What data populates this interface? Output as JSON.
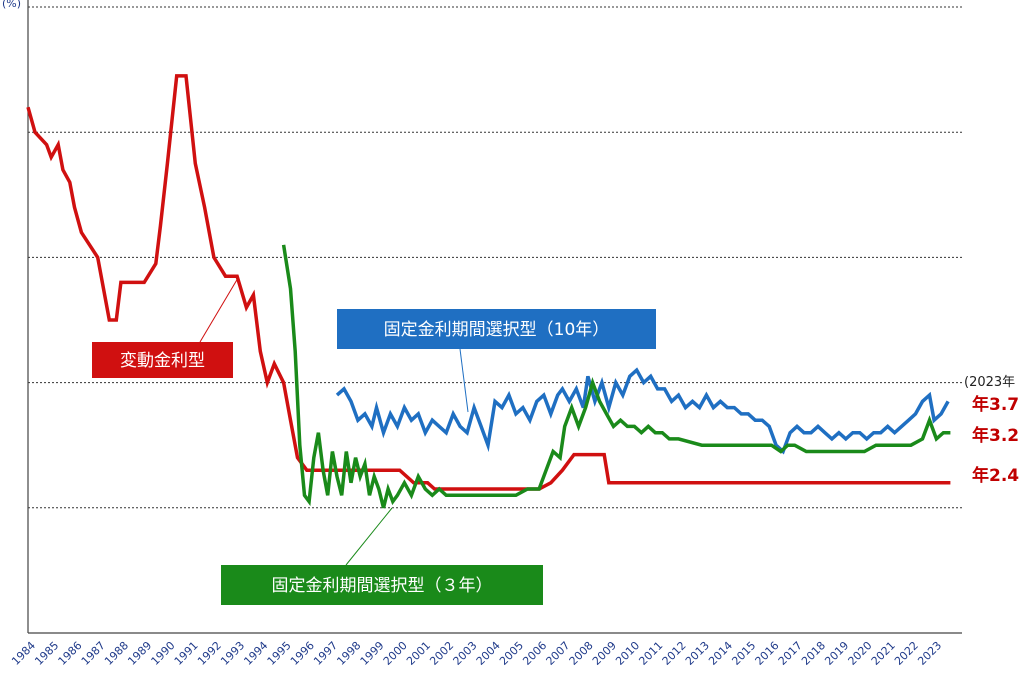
{
  "chart_data": {
    "type": "line",
    "y_unit_label": "(%)",
    "ylim": [
      0,
      10
    ],
    "y_gridlines": [
      2,
      4,
      6,
      8,
      10
    ],
    "x_range": [
      1984,
      2024.2
    ],
    "x_tick_labels": [
      "1984",
      "1985",
      "1986",
      "1987",
      "1988",
      "1989",
      "1990",
      "1991",
      "1992",
      "1993",
      "1994",
      "1995",
      "1996",
      "1997",
      "1998",
      "1999",
      "2000",
      "2001",
      "2002",
      "2003",
      "2004",
      "2005",
      "2006",
      "2007",
      "2008",
      "2009",
      "2010",
      "2011",
      "2012",
      "2013",
      "2014",
      "2015",
      "2016",
      "2017",
      "2018",
      "2019",
      "2020",
      "2021",
      "2022",
      "2023"
    ],
    "note_label": "(2023年",
    "series": [
      {
        "name": "変動金利型",
        "color": "#d01010",
        "end_label": "年2.4",
        "points": [
          [
            1984.0,
            8.4
          ],
          [
            1984.3,
            8.0
          ],
          [
            1984.8,
            7.8
          ],
          [
            1985.0,
            7.6
          ],
          [
            1985.3,
            7.8
          ],
          [
            1985.5,
            7.4
          ],
          [
            1985.8,
            7.2
          ],
          [
            1986.0,
            6.8
          ],
          [
            1986.3,
            6.4
          ],
          [
            1987.0,
            6.0
          ],
          [
            1987.5,
            5.0
          ],
          [
            1987.8,
            5.0
          ],
          [
            1988.0,
            5.6
          ],
          [
            1988.5,
            5.6
          ],
          [
            1989.0,
            5.6
          ],
          [
            1989.5,
            5.9
          ],
          [
            1989.7,
            6.5
          ],
          [
            1990.0,
            7.5
          ],
          [
            1990.4,
            8.9
          ],
          [
            1990.8,
            8.9
          ],
          [
            1991.2,
            7.5
          ],
          [
            1991.6,
            6.8
          ],
          [
            1992.0,
            6.0
          ],
          [
            1992.5,
            5.7
          ],
          [
            1993.0,
            5.7
          ],
          [
            1993.4,
            5.2
          ],
          [
            1993.7,
            5.4
          ],
          [
            1994.0,
            4.5
          ],
          [
            1994.3,
            4.0
          ],
          [
            1994.6,
            4.3
          ],
          [
            1995.0,
            4.0
          ],
          [
            1995.3,
            3.4
          ],
          [
            1995.6,
            2.8
          ],
          [
            1996.0,
            2.6
          ],
          [
            1996.5,
            2.6
          ],
          [
            1997.0,
            2.6
          ],
          [
            1998.0,
            2.6
          ],
          [
            1999.0,
            2.6
          ],
          [
            2000.0,
            2.6
          ],
          [
            2000.6,
            2.4
          ],
          [
            2001.2,
            2.4
          ],
          [
            2001.5,
            2.3
          ],
          [
            2002.0,
            2.3
          ],
          [
            2003.0,
            2.3
          ],
          [
            2004.0,
            2.3
          ],
          [
            2005.0,
            2.3
          ],
          [
            2006.0,
            2.3
          ],
          [
            2006.5,
            2.4
          ],
          [
            2007.0,
            2.6
          ],
          [
            2007.5,
            2.85
          ],
          [
            2008.0,
            2.85
          ],
          [
            2008.8,
            2.85
          ],
          [
            2009.0,
            2.4
          ],
          [
            2010.0,
            2.4
          ],
          [
            2012.0,
            2.4
          ],
          [
            2014.0,
            2.4
          ],
          [
            2016.0,
            2.4
          ],
          [
            2018.0,
            2.4
          ],
          [
            2020.0,
            2.4
          ],
          [
            2022.0,
            2.4
          ],
          [
            2023.7,
            2.4
          ]
        ]
      },
      {
        "name": "固定金利期間選択型（10年）",
        "color": "#1f6fc2",
        "end_label": "年3.7",
        "points": [
          [
            1997.3,
            3.8
          ],
          [
            1997.6,
            3.9
          ],
          [
            1997.9,
            3.7
          ],
          [
            1998.2,
            3.4
          ],
          [
            1998.5,
            3.5
          ],
          [
            1998.8,
            3.3
          ],
          [
            1999.0,
            3.6
          ],
          [
            1999.3,
            3.2
          ],
          [
            1999.6,
            3.5
          ],
          [
            1999.9,
            3.3
          ],
          [
            2000.2,
            3.6
          ],
          [
            2000.5,
            3.4
          ],
          [
            2000.8,
            3.5
          ],
          [
            2001.1,
            3.2
          ],
          [
            2001.4,
            3.4
          ],
          [
            2001.7,
            3.3
          ],
          [
            2002.0,
            3.2
          ],
          [
            2002.3,
            3.5
          ],
          [
            2002.6,
            3.3
          ],
          [
            2002.9,
            3.2
          ],
          [
            2003.2,
            3.6
          ],
          [
            2003.5,
            3.3
          ],
          [
            2003.8,
            3.0
          ],
          [
            2004.1,
            3.7
          ],
          [
            2004.4,
            3.6
          ],
          [
            2004.7,
            3.8
          ],
          [
            2005.0,
            3.5
          ],
          [
            2005.3,
            3.6
          ],
          [
            2005.6,
            3.4
          ],
          [
            2005.9,
            3.7
          ],
          [
            2006.2,
            3.8
          ],
          [
            2006.5,
            3.5
          ],
          [
            2006.8,
            3.8
          ],
          [
            2007.0,
            3.9
          ],
          [
            2007.3,
            3.7
          ],
          [
            2007.6,
            3.9
          ],
          [
            2007.9,
            3.6
          ],
          [
            2008.1,
            4.1
          ],
          [
            2008.4,
            3.7
          ],
          [
            2008.7,
            4.0
          ],
          [
            2009.0,
            3.6
          ],
          [
            2009.3,
            4.0
          ],
          [
            2009.6,
            3.8
          ],
          [
            2009.9,
            4.1
          ],
          [
            2010.2,
            4.2
          ],
          [
            2010.5,
            4.0
          ],
          [
            2010.8,
            4.1
          ],
          [
            2011.1,
            3.9
          ],
          [
            2011.4,
            3.9
          ],
          [
            2011.7,
            3.7
          ],
          [
            2012.0,
            3.8
          ],
          [
            2012.3,
            3.6
          ],
          [
            2012.6,
            3.7
          ],
          [
            2012.9,
            3.6
          ],
          [
            2013.2,
            3.8
          ],
          [
            2013.5,
            3.6
          ],
          [
            2013.8,
            3.7
          ],
          [
            2014.1,
            3.6
          ],
          [
            2014.4,
            3.6
          ],
          [
            2014.7,
            3.5
          ],
          [
            2015.0,
            3.5
          ],
          [
            2015.3,
            3.4
          ],
          [
            2015.6,
            3.4
          ],
          [
            2015.9,
            3.3
          ],
          [
            2016.2,
            3.0
          ],
          [
            2016.5,
            2.9
          ],
          [
            2016.8,
            3.2
          ],
          [
            2017.1,
            3.3
          ],
          [
            2017.4,
            3.2
          ],
          [
            2017.7,
            3.2
          ],
          [
            2018.0,
            3.3
          ],
          [
            2018.3,
            3.2
          ],
          [
            2018.6,
            3.1
          ],
          [
            2018.9,
            3.2
          ],
          [
            2019.2,
            3.1
          ],
          [
            2019.5,
            3.2
          ],
          [
            2019.8,
            3.2
          ],
          [
            2020.1,
            3.1
          ],
          [
            2020.4,
            3.2
          ],
          [
            2020.7,
            3.2
          ],
          [
            2021.0,
            3.3
          ],
          [
            2021.3,
            3.2
          ],
          [
            2021.6,
            3.3
          ],
          [
            2021.9,
            3.4
          ],
          [
            2022.2,
            3.5
          ],
          [
            2022.5,
            3.7
          ],
          [
            2022.8,
            3.8
          ],
          [
            2023.0,
            3.4
          ],
          [
            2023.3,
            3.5
          ],
          [
            2023.6,
            3.7
          ]
        ]
      },
      {
        "name": "固定金利期間選択型（３年）",
        "color": "#1a8a1a",
        "end_label": "年3.2",
        "points": [
          [
            1995.0,
            6.2
          ],
          [
            1995.3,
            5.5
          ],
          [
            1995.5,
            4.5
          ],
          [
            1995.7,
            3.0
          ],
          [
            1995.9,
            2.2
          ],
          [
            1996.1,
            2.1
          ],
          [
            1996.3,
            2.8
          ],
          [
            1996.5,
            3.2
          ],
          [
            1996.7,
            2.6
          ],
          [
            1996.9,
            2.2
          ],
          [
            1997.1,
            2.9
          ],
          [
            1997.3,
            2.5
          ],
          [
            1997.5,
            2.2
          ],
          [
            1997.7,
            2.9
          ],
          [
            1997.9,
            2.4
          ],
          [
            1998.1,
            2.8
          ],
          [
            1998.3,
            2.5
          ],
          [
            1998.5,
            2.7
          ],
          [
            1998.7,
            2.2
          ],
          [
            1998.9,
            2.5
          ],
          [
            1999.1,
            2.3
          ],
          [
            1999.3,
            2.0
          ],
          [
            1999.5,
            2.3
          ],
          [
            1999.7,
            2.1
          ],
          [
            1999.9,
            2.2
          ],
          [
            2000.2,
            2.4
          ],
          [
            2000.5,
            2.2
          ],
          [
            2000.8,
            2.5
          ],
          [
            2001.1,
            2.3
          ],
          [
            2001.4,
            2.2
          ],
          [
            2001.7,
            2.3
          ],
          [
            2002.0,
            2.2
          ],
          [
            2003.0,
            2.2
          ],
          [
            2004.0,
            2.2
          ],
          [
            2005.0,
            2.2
          ],
          [
            2005.5,
            2.3
          ],
          [
            2006.0,
            2.3
          ],
          [
            2006.3,
            2.6
          ],
          [
            2006.6,
            2.9
          ],
          [
            2006.9,
            2.8
          ],
          [
            2007.1,
            3.3
          ],
          [
            2007.4,
            3.6
          ],
          [
            2007.7,
            3.3
          ],
          [
            2008.0,
            3.6
          ],
          [
            2008.3,
            4.0
          ],
          [
            2008.6,
            3.7
          ],
          [
            2008.9,
            3.5
          ],
          [
            2009.2,
            3.3
          ],
          [
            2009.5,
            3.4
          ],
          [
            2009.8,
            3.3
          ],
          [
            2010.1,
            3.3
          ],
          [
            2010.4,
            3.2
          ],
          [
            2010.7,
            3.3
          ],
          [
            2011.0,
            3.2
          ],
          [
            2011.3,
            3.2
          ],
          [
            2011.6,
            3.1
          ],
          [
            2012.0,
            3.1
          ],
          [
            2013.0,
            3.0
          ],
          [
            2014.0,
            3.0
          ],
          [
            2015.0,
            3.0
          ],
          [
            2016.0,
            3.0
          ],
          [
            2016.4,
            2.9
          ],
          [
            2016.7,
            3.0
          ],
          [
            2017.0,
            3.0
          ],
          [
            2017.5,
            2.9
          ],
          [
            2018.0,
            2.9
          ],
          [
            2019.0,
            2.9
          ],
          [
            2020.0,
            2.9
          ],
          [
            2020.5,
            3.0
          ],
          [
            2021.0,
            3.0
          ],
          [
            2022.0,
            3.0
          ],
          [
            2022.5,
            3.1
          ],
          [
            2022.8,
            3.4
          ],
          [
            2023.1,
            3.1
          ],
          [
            2023.4,
            3.2
          ],
          [
            2023.7,
            3.2
          ]
        ]
      }
    ],
    "callouts": [
      {
        "series": 0,
        "text": "変動金利型",
        "color": "#d01010"
      },
      {
        "series": 1,
        "text": "固定金利期間選択型（10年）",
        "color": "#1f6fc2"
      },
      {
        "series": 2,
        "text": "固定金利期間選択型（３年）",
        "color": "#1a8a1a"
      }
    ]
  }
}
